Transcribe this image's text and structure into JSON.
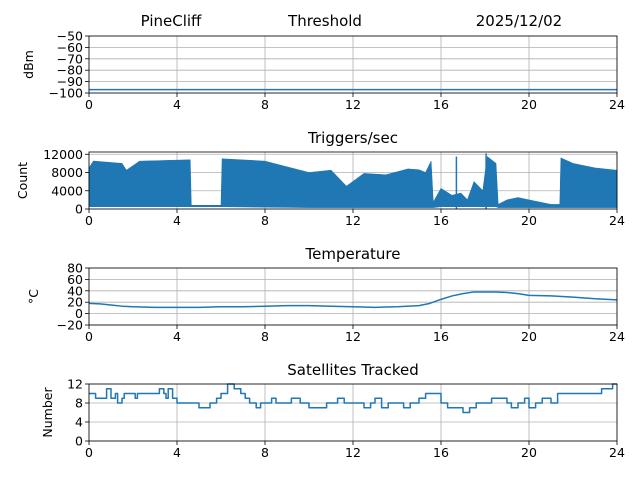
{
  "header": {
    "station": "PineCliff",
    "subtitle": "Threshold",
    "date": "2025/12/02"
  },
  "chart_data": [
    {
      "type": "line",
      "title": "",
      "xlabel": "",
      "ylabel": "dBm",
      "xlim": [
        0,
        24
      ],
      "ylim": [
        -100,
        -50
      ],
      "grid": true,
      "x_ticks": [
        "0",
        "4",
        "8",
        "12",
        "16",
        "20",
        "24"
      ],
      "y_ticks": [
        "−100",
        "−90",
        "−80",
        "−70",
        "−60",
        "−50"
      ],
      "series": [
        {
          "x": [
            0,
            24
          ],
          "values": [
            -97,
            -97
          ]
        }
      ]
    },
    {
      "type": "line",
      "title": "Triggers/sec",
      "xlabel": "",
      "ylabel": "Count",
      "xlim": [
        0,
        24
      ],
      "ylim": [
        0,
        12500
      ],
      "grid": true,
      "x_ticks": [
        "0",
        "4",
        "8",
        "12",
        "16",
        "20",
        "24"
      ],
      "y_ticks": [
        "0",
        "4000",
        "8000",
        "12000"
      ],
      "series": [
        {
          "envelope_x": [
            0,
            0.2,
            1.5,
            1.7,
            2.3,
            4.6,
            4.65,
            6.0,
            6.05,
            8.0,
            10.0,
            11.0,
            11.7,
            12.5,
            13.5,
            14.5,
            15.0,
            15.3,
            15.55,
            15.65,
            16.0,
            16.5,
            16.9,
            17.2,
            17.5,
            17.9,
            18.1,
            18.5,
            18.6,
            19.0,
            19.5,
            20.0,
            21.0,
            21.4,
            21.45,
            22.0,
            23.0,
            24.0
          ],
          "envelope_max": [
            9000,
            10500,
            10000,
            8500,
            10500,
            10800,
            800,
            800,
            11000,
            10500,
            8000,
            8500,
            5000,
            7800,
            7500,
            8800,
            8600,
            8000,
            10500,
            1500,
            4500,
            3000,
            3500,
            2000,
            6000,
            4000,
            11500,
            10000,
            1000,
            2000,
            2500,
            2000,
            1000,
            1000,
            11200,
            10000,
            9000,
            8500
          ],
          "envelope_min": [
            500,
            500,
            500,
            500,
            500,
            500,
            500,
            500,
            500,
            400,
            300,
            300,
            300,
            300,
            300,
            300,
            300,
            300,
            300,
            300,
            500,
            500,
            500,
            500,
            500,
            500,
            500,
            500,
            300,
            300,
            300,
            300,
            300,
            300,
            300,
            300,
            300,
            300
          ],
          "spikes": [
            {
              "x": 16.7,
              "y": 11500
            },
            {
              "x": 18.05,
              "y": 12200
            }
          ]
        }
      ]
    },
    {
      "type": "line",
      "title": "Temperature",
      "xlabel": "",
      "ylabel": "°C",
      "xlim": [
        0,
        24
      ],
      "ylim": [
        -20,
        80
      ],
      "grid": true,
      "x_ticks": [
        "0",
        "4",
        "8",
        "12",
        "16",
        "20",
        "24"
      ],
      "y_ticks": [
        "−20",
        "0",
        "20",
        "40",
        "60",
        "80"
      ],
      "series": [
        {
          "x": [
            0,
            0.5,
            1,
            1.5,
            2,
            3,
            4,
            5,
            6,
            7,
            8,
            9,
            10,
            11,
            12,
            13,
            14,
            15,
            15.5,
            16,
            16.5,
            17,
            17.5,
            18,
            18.5,
            19,
            19.5,
            20,
            21,
            22,
            23,
            24
          ],
          "values": [
            18,
            17,
            15,
            13,
            12,
            11,
            11,
            11,
            12,
            12,
            13,
            14,
            14,
            13,
            12,
            11,
            12,
            14,
            18,
            25,
            31,
            35,
            38,
            38,
            38,
            37,
            35,
            32,
            31,
            29,
            26,
            24
          ]
        }
      ]
    },
    {
      "type": "line",
      "title": "Satellites Tracked",
      "xlabel": "",
      "ylabel": "Number",
      "xlim": [
        0,
        24
      ],
      "ylim": [
        0,
        12
      ],
      "grid": true,
      "x_ticks": [
        "0",
        "4",
        "8",
        "12",
        "16",
        "20",
        "24"
      ],
      "y_ticks": [
        "0",
        "4",
        "8",
        "12"
      ],
      "series": [
        {
          "x": [
            0,
            0.3,
            0.7,
            0.8,
            1.0,
            1.2,
            1.3,
            1.5,
            1.6,
            2.0,
            2.1,
            2.2,
            2.5,
            3.0,
            3.2,
            3.4,
            3.5,
            3.6,
            3.8,
            4.0,
            4.4,
            4.6,
            5.0,
            5.3,
            5.5,
            5.8,
            6.0,
            6.3,
            6.6,
            6.9,
            7.1,
            7.3,
            7.6,
            7.8,
            8.0,
            8.3,
            8.5,
            9.0,
            9.2,
            9.6,
            10.0,
            10.4,
            10.8,
            11.0,
            11.3,
            11.6,
            12.0,
            12.5,
            12.8,
            13.0,
            13.3,
            13.6,
            14.0,
            14.3,
            14.6,
            15.0,
            15.3,
            15.6,
            16.0,
            16.3,
            16.6,
            17.0,
            17.3,
            17.6,
            18.0,
            18.3,
            18.6,
            19.0,
            19.2,
            19.5,
            19.8,
            20.0,
            20.3,
            20.6,
            21.0,
            21.3,
            21.6,
            22.0,
            22.3,
            22.6,
            23.0,
            23.3,
            23.6,
            23.8,
            24.0
          ],
          "values": [
            10,
            9,
            9,
            11,
            9,
            10,
            8,
            9,
            10,
            10,
            9,
            10,
            10,
            10,
            11,
            10,
            9,
            11,
            9,
            8,
            8,
            8,
            7,
            7,
            8,
            9,
            10,
            12,
            11,
            10,
            9,
            8,
            7,
            8,
            8,
            9,
            8,
            8,
            9,
            8,
            7,
            7,
            8,
            8,
            9,
            8,
            8,
            7,
            8,
            9,
            7,
            8,
            8,
            7,
            8,
            9,
            10,
            10,
            8,
            7,
            7,
            6,
            7,
            8,
            8,
            9,
            9,
            8,
            7,
            8,
            9,
            7,
            8,
            9,
            8,
            10,
            10,
            10,
            10,
            10,
            10,
            11,
            11,
            12,
            12
          ]
        }
      ]
    }
  ]
}
